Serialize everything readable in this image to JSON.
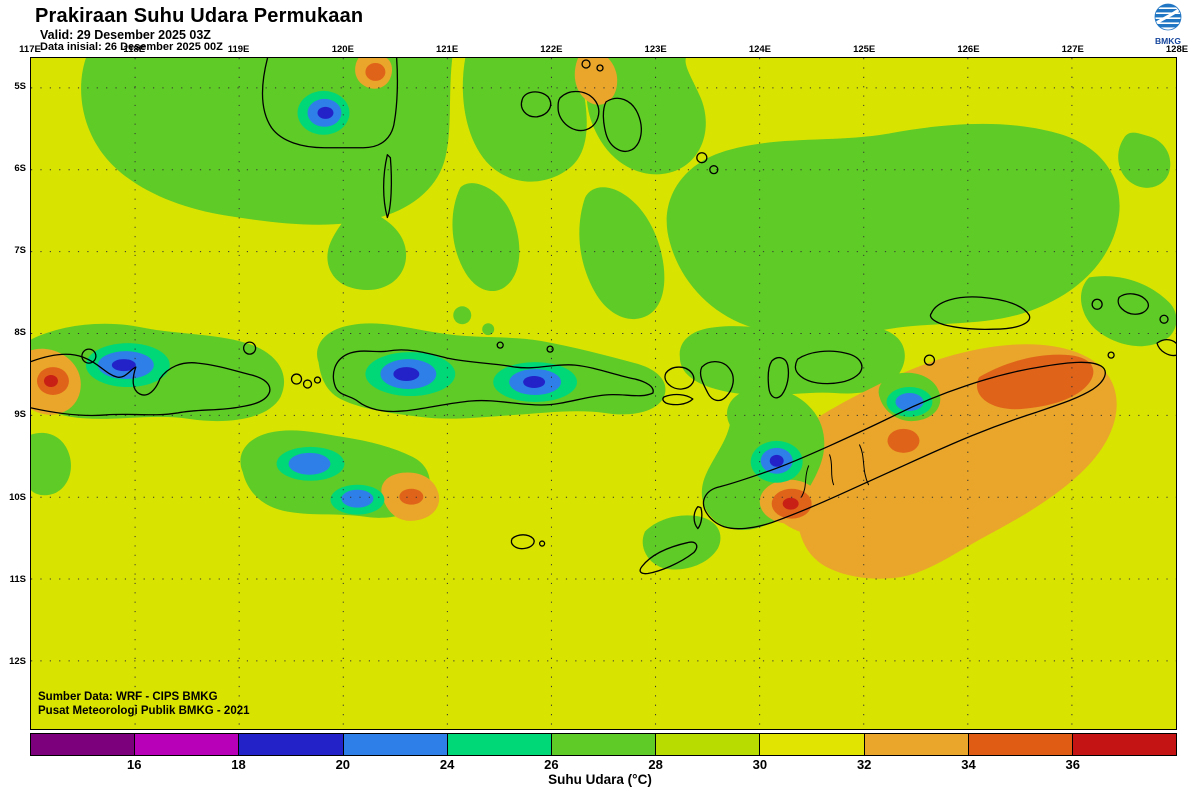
{
  "header": {
    "title": "Prakiraan Suhu Udara Permukaan",
    "valid_line": "Valid: 29 Desember 2025 03Z",
    "init_line": "Data inisial: 26 Desember 2025 00Z",
    "logo_text": "BMKG"
  },
  "map": {
    "lon_labels": [
      "117E",
      "118E",
      "119E",
      "120E",
      "121E",
      "122E",
      "123E",
      "124E",
      "125E",
      "126E",
      "127E",
      "128E"
    ],
    "lat_labels": [
      "5S",
      "6S",
      "7S",
      "8S",
      "9S",
      "10S",
      "11S",
      "12S"
    ],
    "source_line1": "Sumber Data: WRF - CIPS BMKG",
    "source_line2": "Pusat Meteorologi Publik BMKG - 2021"
  },
  "colorbar": {
    "caption": "Suhu Udara (°C)",
    "tick_labels": [
      "16",
      "18",
      "20",
      "24",
      "26",
      "28",
      "30",
      "32",
      "34",
      "36"
    ],
    "segment_colors": [
      "#7c007c",
      "#b800b8",
      "#2222c8",
      "#2e7fe8",
      "#00d878",
      "#5fcb26",
      "#b8dc00",
      "#e0e400",
      "#e9a62a",
      "#e05c14",
      "#c41414"
    ]
  },
  "colors": {
    "bg": "#d9e300",
    "green": "#5fcb26",
    "teal": "#00d878",
    "blue": "#2e7fe8",
    "deepblue": "#2222c8",
    "orange": "#e9a62a",
    "darkorange": "#e0631a",
    "red": "#c82014",
    "logo": "#16459c",
    "logostripe": "#2176c4"
  }
}
